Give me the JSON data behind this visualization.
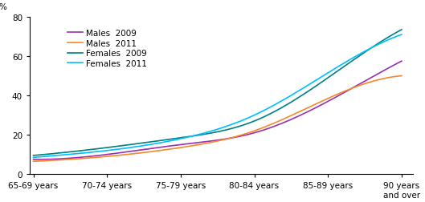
{
  "x_labels": [
    "65-69 years",
    "70-74 years",
    "75-79 years",
    "80-84 years",
    "85-89 years",
    "90 years\nand over"
  ],
  "x_positions": [
    0,
    1,
    2,
    3,
    4,
    5
  ],
  "series": [
    {
      "label": "Males  2009",
      "color": "#9B2FAF",
      "values": [
        7.5,
        10.0,
        15.0,
        21.0,
        37.0,
        57.5
      ]
    },
    {
      "label": "Males  2011",
      "color": "#F5882A",
      "values": [
        6.5,
        9.0,
        13.5,
        22.0,
        38.5,
        50.0
      ]
    },
    {
      "label": "Females  2009",
      "color": "#008080",
      "values": [
        9.5,
        13.5,
        18.5,
        27.0,
        49.0,
        73.5
      ]
    },
    {
      "label": "Females  2011",
      "color": "#00BFFF",
      "values": [
        8.5,
        12.0,
        18.0,
        30.0,
        51.5,
        71.0
      ]
    }
  ],
  "ylabel": "%",
  "ylim": [
    0,
    80
  ],
  "yticks": [
    0,
    20,
    40,
    60,
    80
  ],
  "background_color": "#ffffff",
  "legend_fontsize": 7.5,
  "axis_fontsize": 7.5,
  "linewidth": 1.2
}
